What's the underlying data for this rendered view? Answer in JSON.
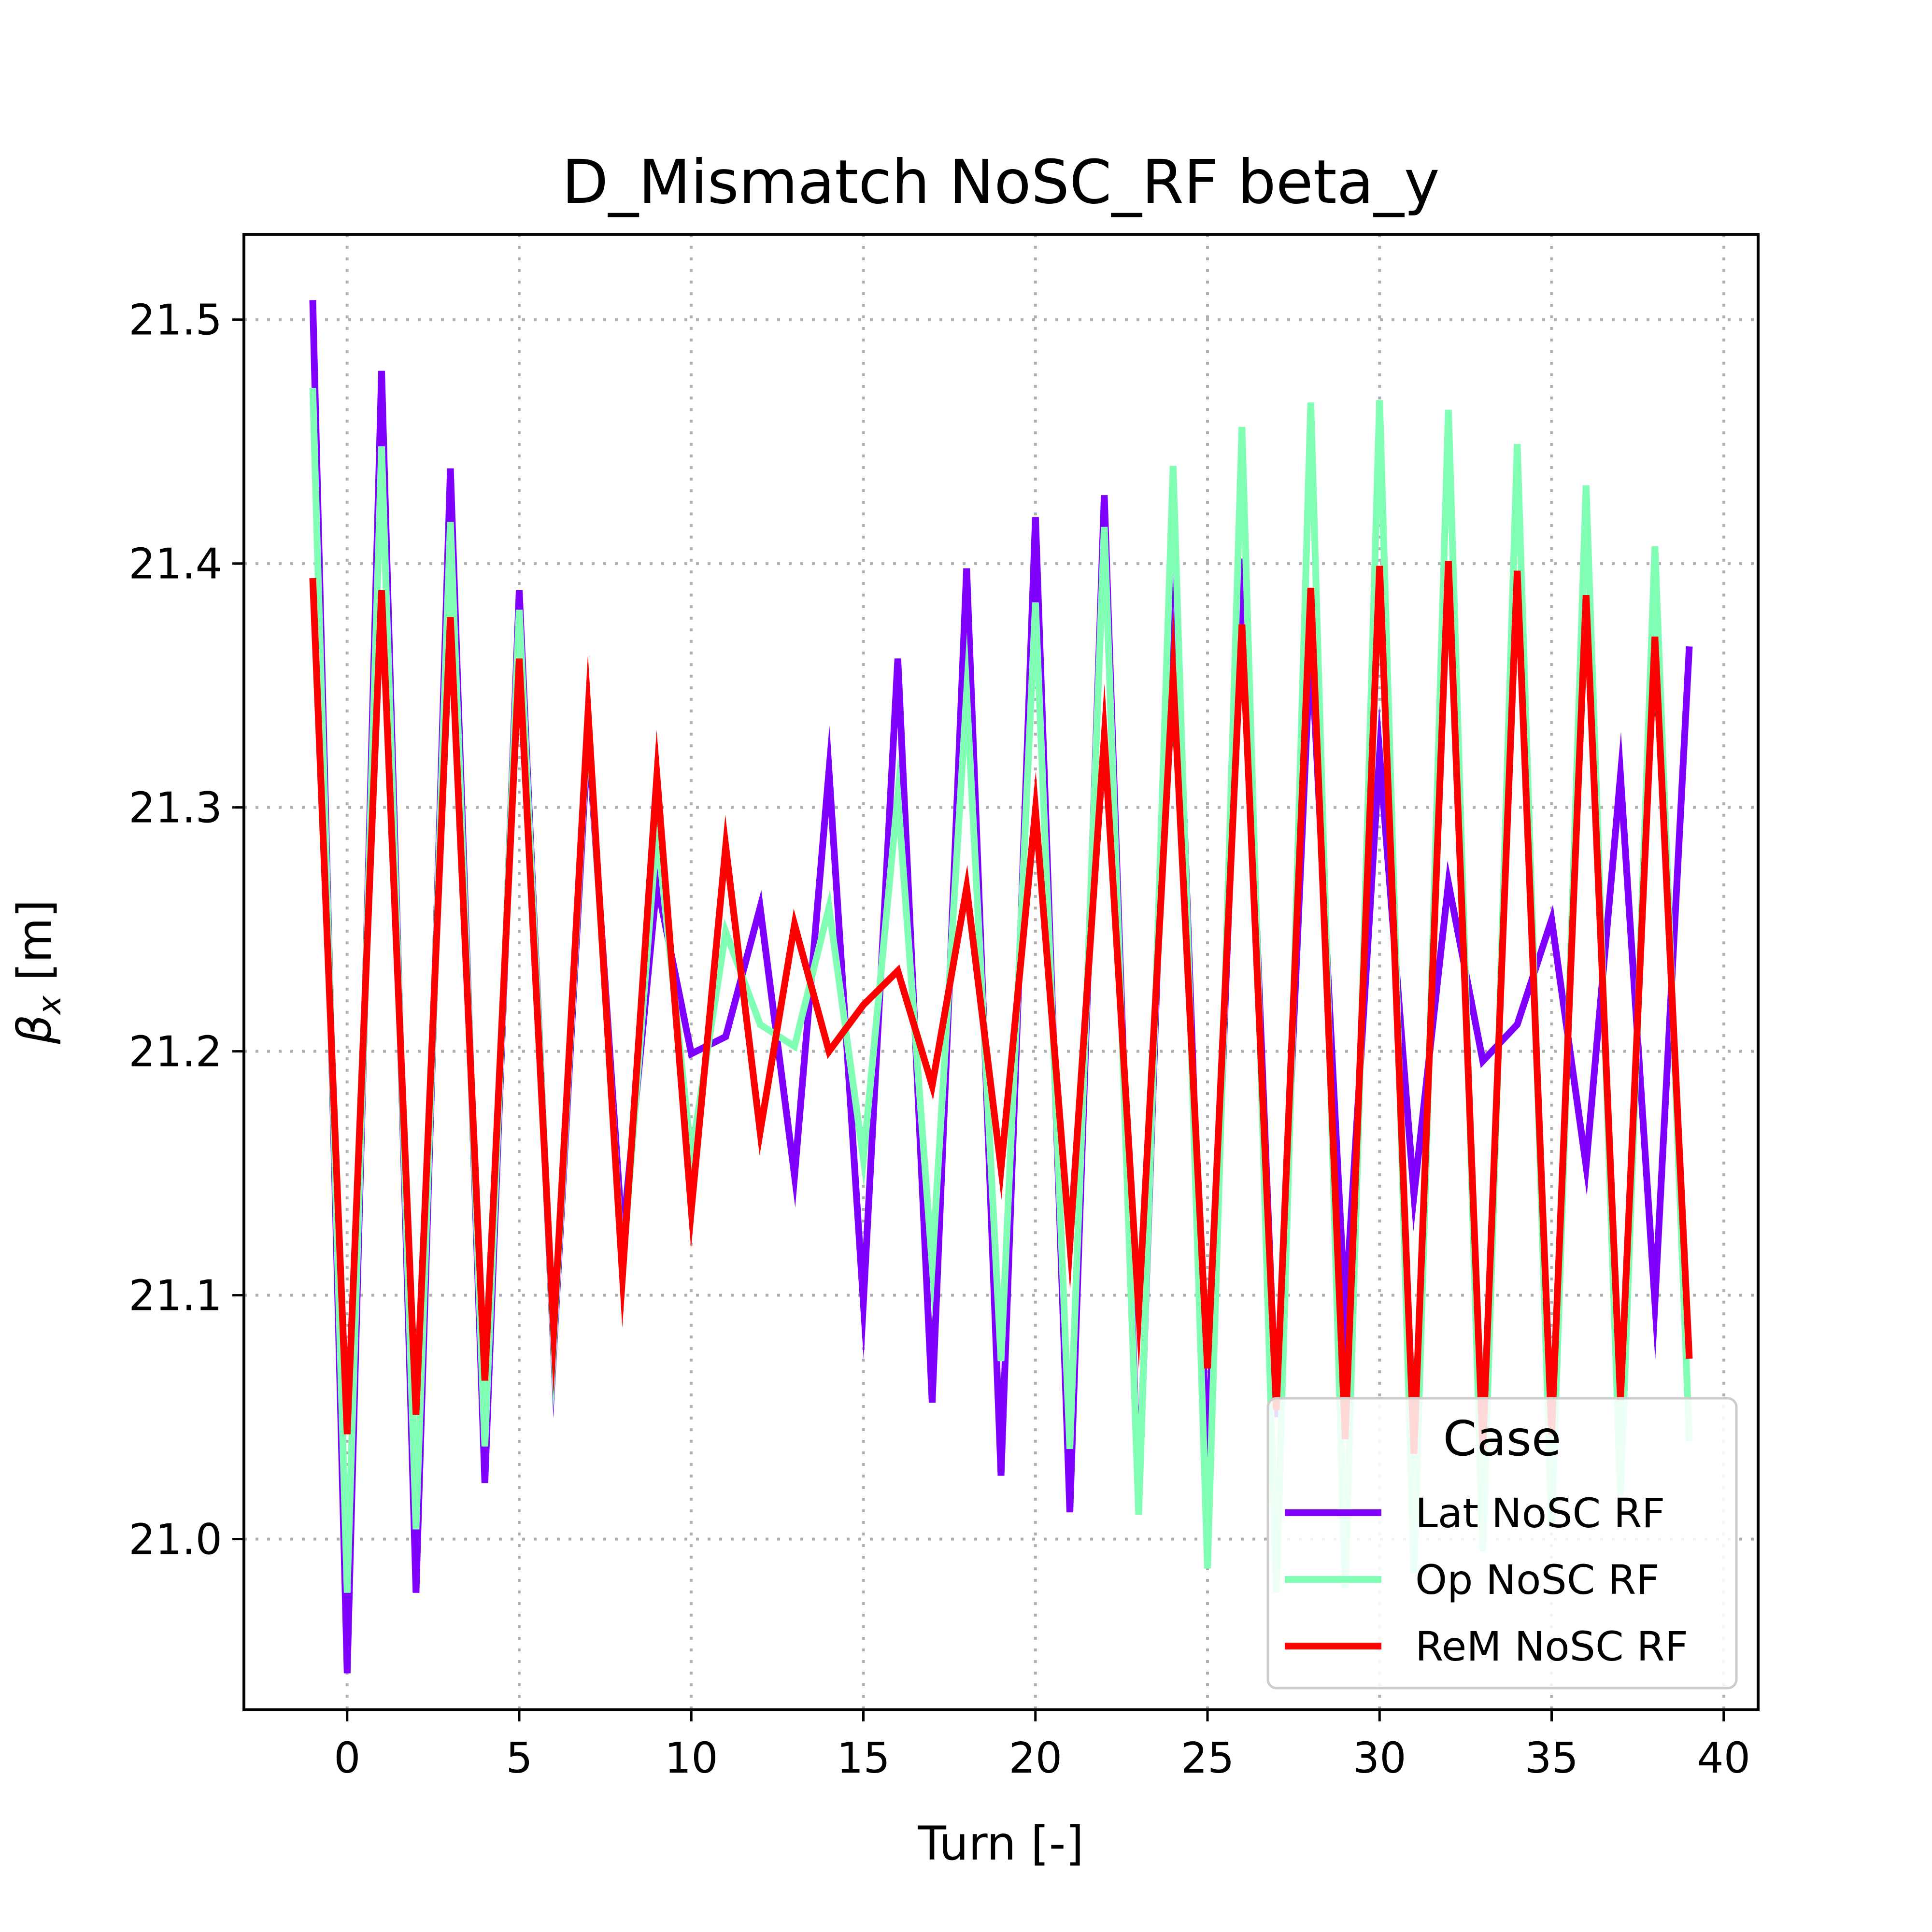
{
  "chart_data": {
    "type": "line",
    "title": "D_Mismatch NoSC_RF beta_y",
    "xlabel": "Turn [-]",
    "ylabel_symbol": "β",
    "ylabel_sub": "x",
    "ylabel_rest": " [m]",
    "xlim": [
      -3,
      41
    ],
    "ylim": [
      20.93,
      21.535
    ],
    "xticks": [
      0,
      5,
      10,
      15,
      20,
      25,
      30,
      35,
      40
    ],
    "yticks": [
      21.0,
      21.1,
      21.2,
      21.3,
      21.4,
      21.5
    ],
    "xtick_labels": [
      "0",
      "5",
      "10",
      "15",
      "20",
      "25",
      "30",
      "35",
      "40"
    ],
    "ytick_labels": [
      "21.0",
      "21.1",
      "21.2",
      "21.3",
      "21.4",
      "21.5"
    ],
    "grid": true,
    "legend": {
      "title": "Case",
      "placement": "lower-right"
    },
    "x": [
      -1,
      0,
      1,
      2,
      3,
      4,
      5,
      6,
      7,
      8,
      9,
      10,
      11,
      12,
      13,
      14,
      15,
      16,
      17,
      18,
      19,
      20,
      21,
      22,
      23,
      24,
      25,
      26,
      27,
      28,
      29,
      30,
      31,
      32,
      33,
      34,
      35,
      36,
      37,
      38,
      39
    ],
    "series": [
      {
        "name": "Lat NoSC RF",
        "color": "#8000ff",
        "values": [
          21.508,
          20.945,
          21.479,
          20.978,
          21.439,
          21.023,
          21.389,
          21.077,
          21.331,
          21.123,
          21.269,
          21.199,
          21.206,
          21.259,
          21.149,
          21.315,
          21.097,
          21.361,
          21.056,
          21.398,
          21.026,
          21.419,
          21.011,
          21.428,
          21.013,
          21.422,
          21.027,
          21.402,
          21.05,
          21.369,
          21.093,
          21.322,
          21.141,
          21.269,
          21.196,
          21.211,
          21.254,
          21.153,
          21.313,
          21.097,
          21.366
        ]
      },
      {
        "name": "Op NoSC RF",
        "color": "#80ffb4",
        "values": [
          21.472,
          20.978,
          21.448,
          21.004,
          21.417,
          21.038,
          21.381,
          21.08,
          21.337,
          21.11,
          21.291,
          21.157,
          21.249,
          21.211,
          21.202,
          21.259,
          21.156,
          21.305,
          21.112,
          21.347,
          21.073,
          21.384,
          21.037,
          21.415,
          21.01,
          21.44,
          20.988,
          21.456,
          20.978,
          21.466,
          20.98,
          21.467,
          20.986,
          21.463,
          20.995,
          21.449,
          21.004,
          21.432,
          21.018,
          21.407,
          21.04
        ]
      },
      {
        "name": "ReM NoSC RF",
        "color": "#ff0000",
        "values": [
          21.394,
          21.043,
          21.389,
          21.051,
          21.378,
          21.065,
          21.361,
          21.085,
          21.339,
          21.108,
          21.313,
          21.135,
          21.284,
          21.167,
          21.252,
          21.2,
          21.219,
          21.233,
          21.186,
          21.267,
          21.152,
          21.299,
          21.121,
          21.329,
          21.094,
          21.354,
          21.07,
          21.375,
          21.053,
          21.39,
          21.041,
          21.399,
          21.035,
          21.401,
          21.037,
          21.397,
          21.043,
          21.387,
          21.057,
          21.37,
          21.074
        ]
      }
    ]
  }
}
